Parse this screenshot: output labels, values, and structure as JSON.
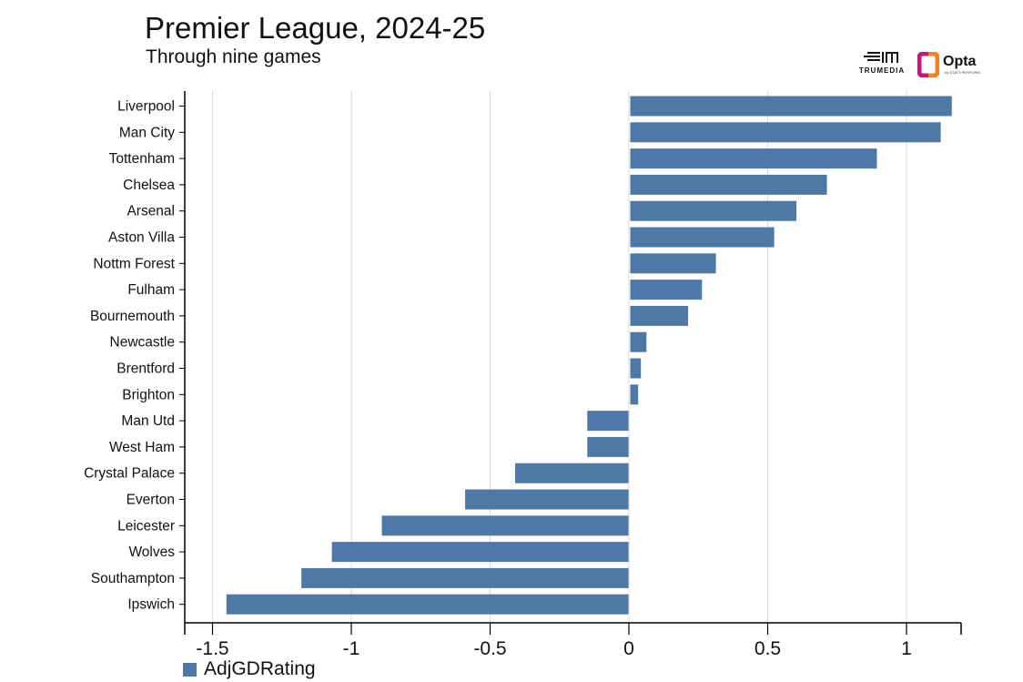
{
  "header": {
    "title": "Premier League, 2024-25",
    "subtitle": "Through nine games"
  },
  "logos": {
    "trumedia_word": "TRUMEDIA",
    "opta_word": "Opta",
    "opta_sub": "by STATS PERFORM"
  },
  "colors": {
    "bar": "#4e79a7",
    "grid": "#d9d9d9",
    "axis": "#000000",
    "opta_orange": "#f58220",
    "opta_magenta": "#c2187c"
  },
  "chart_data": {
    "type": "bar",
    "orientation": "horizontal",
    "title": "Premier League, 2024-25",
    "subtitle": "Through nine games",
    "xlabel": "",
    "ylabel": "",
    "xlim": [
      -1.6,
      1.2
    ],
    "x_ticks": [
      -1.5,
      -1,
      -0.5,
      0,
      0.5,
      1
    ],
    "x_tick_labels": [
      "-1.5",
      "-1",
      "-0.5",
      "0",
      "0.5",
      "1"
    ],
    "grid": "vertical",
    "legend_position": "bottom-left",
    "categories": [
      "Liverpool",
      "Man City",
      "Tottenham",
      "Chelsea",
      "Arsenal",
      "Aston Villa",
      "Nottm Forest",
      "Fulham",
      "Bournemouth",
      "Newcastle",
      "Brentford",
      "Brighton",
      "Man Utd",
      "West Ham",
      "Crystal Palace",
      "Everton",
      "Leicester",
      "Wolves",
      "Southampton",
      "Ipswich"
    ],
    "series": [
      {
        "name": "AdjGDRating",
        "values": [
          1.16,
          1.12,
          0.89,
          0.71,
          0.6,
          0.52,
          0.31,
          0.26,
          0.21,
          0.06,
          0.04,
          0.03,
          -0.15,
          -0.15,
          -0.41,
          -0.59,
          -0.89,
          -1.07,
          -1.18,
          -1.45
        ]
      }
    ]
  }
}
